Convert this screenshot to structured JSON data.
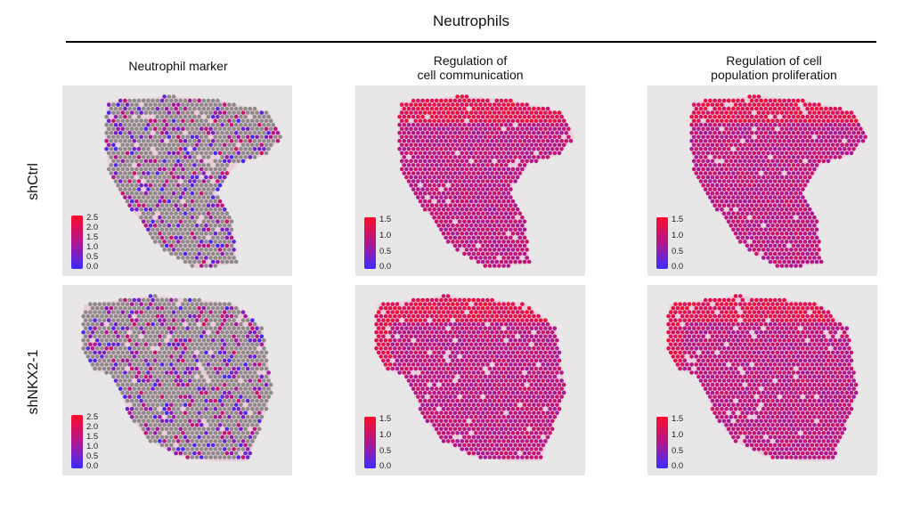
{
  "header": {
    "title": "Neutrophils"
  },
  "columns": [
    {
      "title": "Neutrophil marker"
    },
    {
      "title": "Regulation of\ncell communication"
    },
    {
      "title": "Regulation of cell\npopulation proliferation"
    }
  ],
  "rows": [
    {
      "label": "shCtrl"
    },
    {
      "label": "shNKX2-1"
    }
  ],
  "legends": {
    "marker": [
      "2.5",
      "2.0",
      "1.5",
      "1.0",
      "0.5",
      "0.0"
    ],
    "score": [
      "1.5",
      "1.0",
      "0.5",
      "0.0"
    ]
  },
  "colors": {
    "low": "#3b2bff",
    "mid": "#b0168f",
    "high": "#ff0a2a",
    "zero_spot": "#8e8a8a",
    "tissue_pink": "#e8a4c7",
    "background": "#e8e6e6"
  }
}
